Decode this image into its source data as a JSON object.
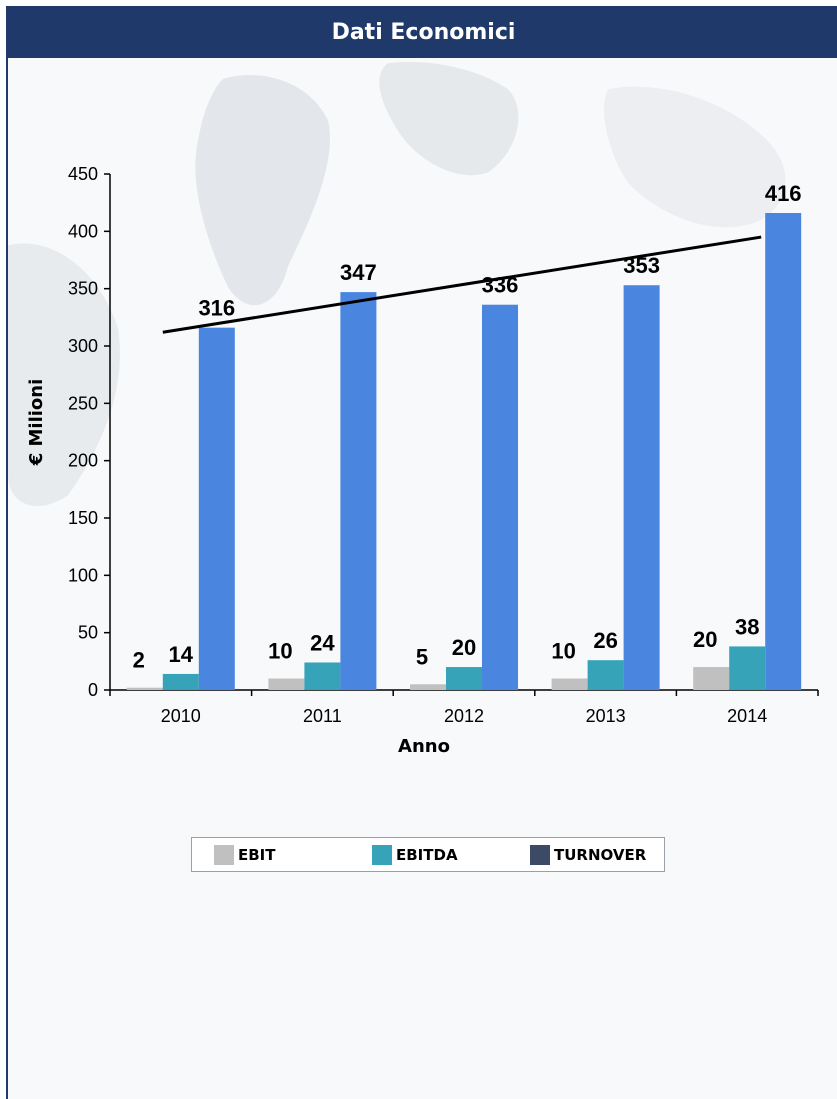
{
  "header": {
    "title": "Dati Economici"
  },
  "colors": {
    "header_bg": "#1f3a6a",
    "ebit": "#c0c0c0",
    "ebitda": "#36a3b8",
    "turnover": "#4a86e0",
    "turnover_legend": "#3d4a66"
  },
  "chart_data": {
    "type": "bar",
    "title": "",
    "xlabel": "Anno",
    "ylabel": "€ Milioni",
    "ylim": [
      0,
      450
    ],
    "yticks": [
      "0",
      "50",
      "100",
      "150",
      "200",
      "250",
      "300",
      "350",
      "400",
      "450"
    ],
    "categories": [
      "2010",
      "2011",
      "2012",
      "2013",
      "2014"
    ],
    "series": [
      {
        "name": "EBIT",
        "values": [
          2,
          10,
          5,
          10,
          20
        ],
        "labels": [
          "2",
          "10",
          "5",
          "10",
          "20"
        ]
      },
      {
        "name": "EBITDA",
        "values": [
          14,
          24,
          20,
          26,
          38
        ],
        "labels": [
          "14",
          "24",
          "20",
          "26",
          "38"
        ]
      },
      {
        "name": "TURNOVER",
        "values": [
          316,
          347,
          336,
          353,
          416
        ],
        "labels": [
          "316",
          "347",
          "336",
          "353",
          "416"
        ]
      }
    ],
    "trendline": {
      "series": "TURNOVER",
      "from_category": "2010",
      "to_category": "2014",
      "y_start": 312,
      "y_end": 395
    },
    "legend_position": "bottom",
    "grid": false
  }
}
